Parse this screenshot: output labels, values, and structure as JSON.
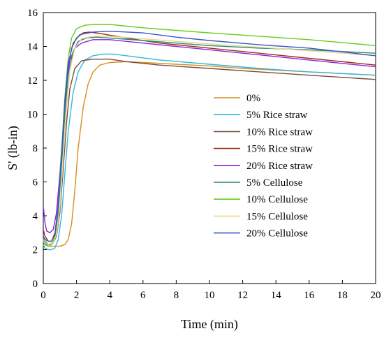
{
  "chart_data": {
    "type": "line",
    "title": "",
    "xlabel": "Time (min)",
    "ylabel": "S' (lb-in)",
    "xlim": [
      0,
      20
    ],
    "ylim": [
      0,
      16
    ],
    "xticks": [
      0,
      2,
      4,
      6,
      8,
      10,
      12,
      14,
      16,
      18,
      20
    ],
    "yticks": [
      0,
      2,
      4,
      6,
      8,
      10,
      12,
      14,
      16
    ],
    "grid": false,
    "legend_position": "center-right",
    "series": [
      {
        "name": "0%",
        "color": "#d4901e",
        "points": [
          [
            0,
            2.6
          ],
          [
            0.1,
            2.4
          ],
          [
            0.3,
            2.2
          ],
          [
            0.6,
            2.2
          ],
          [
            1.0,
            2.2
          ],
          [
            1.3,
            2.3
          ],
          [
            1.5,
            2.6
          ],
          [
            1.7,
            3.5
          ],
          [
            1.9,
            5.5
          ],
          [
            2.1,
            8.0
          ],
          [
            2.4,
            10.4
          ],
          [
            2.7,
            11.8
          ],
          [
            3.0,
            12.5
          ],
          [
            3.4,
            12.9
          ],
          [
            4.0,
            13.05
          ],
          [
            5.0,
            13.1
          ],
          [
            6.0,
            13.05
          ],
          [
            8.0,
            12.95
          ],
          [
            10.0,
            12.85
          ],
          [
            12.0,
            12.7
          ],
          [
            14.0,
            12.6
          ],
          [
            16.0,
            12.5
          ],
          [
            18.0,
            12.4
          ],
          [
            20.0,
            12.3
          ]
        ]
      },
      {
        "name": "5% Rice straw",
        "color": "#30b8d8",
        "points": [
          [
            0,
            2.3
          ],
          [
            0.1,
            2.1
          ],
          [
            0.3,
            2.0
          ],
          [
            0.5,
            2.0
          ],
          [
            0.7,
            2.1
          ],
          [
            0.9,
            2.6
          ],
          [
            1.1,
            4.0
          ],
          [
            1.3,
            6.5
          ],
          [
            1.5,
            9.0
          ],
          [
            1.8,
            11.3
          ],
          [
            2.1,
            12.5
          ],
          [
            2.5,
            13.2
          ],
          [
            3.0,
            13.45
          ],
          [
            3.6,
            13.55
          ],
          [
            4.2,
            13.55
          ],
          [
            5.0,
            13.45
          ],
          [
            7.0,
            13.2
          ],
          [
            10.0,
            12.95
          ],
          [
            13.0,
            12.7
          ],
          [
            16.0,
            12.5
          ],
          [
            18.0,
            12.4
          ],
          [
            20.0,
            12.3
          ]
        ]
      },
      {
        "name": "10% Rice straw",
        "color": "#7a4a3e",
        "points": [
          [
            0,
            2.4
          ],
          [
            0.1,
            2.3
          ],
          [
            0.3,
            2.3
          ],
          [
            0.6,
            2.4
          ],
          [
            0.8,
            2.8
          ],
          [
            1.0,
            4.2
          ],
          [
            1.2,
            6.8
          ],
          [
            1.4,
            9.5
          ],
          [
            1.6,
            11.5
          ],
          [
            1.9,
            12.7
          ],
          [
            2.3,
            13.15
          ],
          [
            3.0,
            13.25
          ],
          [
            4.0,
            13.25
          ],
          [
            5.0,
            13.1
          ],
          [
            7.0,
            12.9
          ],
          [
            10.0,
            12.7
          ],
          [
            13.0,
            12.5
          ],
          [
            16.0,
            12.3
          ],
          [
            20.0,
            12.05
          ]
        ]
      },
      {
        "name": "15% Rice straw",
        "color": "#a02818",
        "points": [
          [
            0,
            3.2
          ],
          [
            0.1,
            2.8
          ],
          [
            0.3,
            2.5
          ],
          [
            0.5,
            2.5
          ],
          [
            0.7,
            3.0
          ],
          [
            0.9,
            4.6
          ],
          [
            1.1,
            7.5
          ],
          [
            1.3,
            10.5
          ],
          [
            1.5,
            12.7
          ],
          [
            1.7,
            13.9
          ],
          [
            2.0,
            14.5
          ],
          [
            2.4,
            14.8
          ],
          [
            2.8,
            14.85
          ],
          [
            3.5,
            14.75
          ],
          [
            5.0,
            14.5
          ],
          [
            7.0,
            14.2
          ],
          [
            10.0,
            13.9
          ],
          [
            13.0,
            13.6
          ],
          [
            16.0,
            13.3
          ],
          [
            20.0,
            12.9
          ]
        ]
      },
      {
        "name": "20% Rice straw",
        "color": "#8a22e0",
        "points": [
          [
            0,
            4.6
          ],
          [
            0.1,
            3.6
          ],
          [
            0.2,
            3.1
          ],
          [
            0.4,
            3.0
          ],
          [
            0.6,
            3.2
          ],
          [
            0.8,
            4.2
          ],
          [
            1.0,
            6.5
          ],
          [
            1.2,
            9.3
          ],
          [
            1.4,
            11.8
          ],
          [
            1.6,
            13.2
          ],
          [
            1.9,
            13.9
          ],
          [
            2.3,
            14.2
          ],
          [
            3.0,
            14.4
          ],
          [
            4.0,
            14.4
          ],
          [
            6.0,
            14.2
          ],
          [
            8.0,
            14.0
          ],
          [
            10.0,
            13.8
          ],
          [
            13.0,
            13.5
          ],
          [
            16.0,
            13.2
          ],
          [
            20.0,
            12.8
          ]
        ]
      },
      {
        "name": "5% Cellulose",
        "color": "#2e8a72",
        "points": [
          [
            0,
            2.7
          ],
          [
            0.1,
            2.5
          ],
          [
            0.3,
            2.3
          ],
          [
            0.5,
            2.3
          ],
          [
            0.7,
            2.7
          ],
          [
            0.9,
            4.2
          ],
          [
            1.1,
            7.0
          ],
          [
            1.3,
            10.0
          ],
          [
            1.5,
            12.3
          ],
          [
            1.8,
            13.7
          ],
          [
            2.1,
            14.3
          ],
          [
            2.6,
            14.5
          ],
          [
            3.2,
            14.55
          ],
          [
            4.0,
            14.5
          ],
          [
            6.0,
            14.35
          ],
          [
            8.0,
            14.2
          ],
          [
            10.0,
            14.05
          ],
          [
            13.0,
            13.9
          ],
          [
            16.0,
            13.8
          ],
          [
            20.0,
            13.6
          ]
        ]
      },
      {
        "name": "10% Cellulose",
        "color": "#66cc1e",
        "points": [
          [
            0,
            2.5
          ],
          [
            0.1,
            2.3
          ],
          [
            0.3,
            2.2
          ],
          [
            0.5,
            2.3
          ],
          [
            0.7,
            2.8
          ],
          [
            0.9,
            4.6
          ],
          [
            1.1,
            7.8
          ],
          [
            1.3,
            11.0
          ],
          [
            1.5,
            13.3
          ],
          [
            1.7,
            14.5
          ],
          [
            2.0,
            15.05
          ],
          [
            2.5,
            15.25
          ],
          [
            3.0,
            15.3
          ],
          [
            4.0,
            15.3
          ],
          [
            6.0,
            15.1
          ],
          [
            8.0,
            14.95
          ],
          [
            10.0,
            14.8
          ],
          [
            13.0,
            14.6
          ],
          [
            16.0,
            14.4
          ],
          [
            20.0,
            14.05
          ]
        ]
      },
      {
        "name": "15% Cellulose",
        "color": "#e8d48a",
        "points": [
          [
            0,
            2.6
          ],
          [
            0.1,
            2.4
          ],
          [
            0.3,
            2.3
          ],
          [
            0.6,
            2.4
          ],
          [
            0.8,
            2.9
          ],
          [
            1.0,
            4.5
          ],
          [
            1.2,
            7.4
          ],
          [
            1.4,
            10.4
          ],
          [
            1.6,
            12.6
          ],
          [
            1.9,
            13.9
          ],
          [
            2.3,
            14.45
          ],
          [
            3.0,
            14.6
          ],
          [
            4.0,
            14.6
          ],
          [
            6.0,
            14.45
          ],
          [
            8.0,
            14.3
          ],
          [
            10.0,
            14.15
          ],
          [
            13.0,
            13.95
          ],
          [
            16.0,
            13.75
          ],
          [
            20.0,
            13.45
          ]
        ]
      },
      {
        "name": "20% Cellulose",
        "color": "#3858c8",
        "points": [
          [
            0,
            2.8
          ],
          [
            0.1,
            2.6
          ],
          [
            0.3,
            2.5
          ],
          [
            0.5,
            2.5
          ],
          [
            0.7,
            2.9
          ],
          [
            0.9,
            4.6
          ],
          [
            1.1,
            7.6
          ],
          [
            1.3,
            10.8
          ],
          [
            1.5,
            13.0
          ],
          [
            1.8,
            14.2
          ],
          [
            2.2,
            14.7
          ],
          [
            3.0,
            14.85
          ],
          [
            4.0,
            14.9
          ],
          [
            6.0,
            14.8
          ],
          [
            8.0,
            14.55
          ],
          [
            10.0,
            14.35
          ],
          [
            13.0,
            14.1
          ],
          [
            16.0,
            13.9
          ],
          [
            20.0,
            13.45
          ]
        ]
      }
    ]
  }
}
